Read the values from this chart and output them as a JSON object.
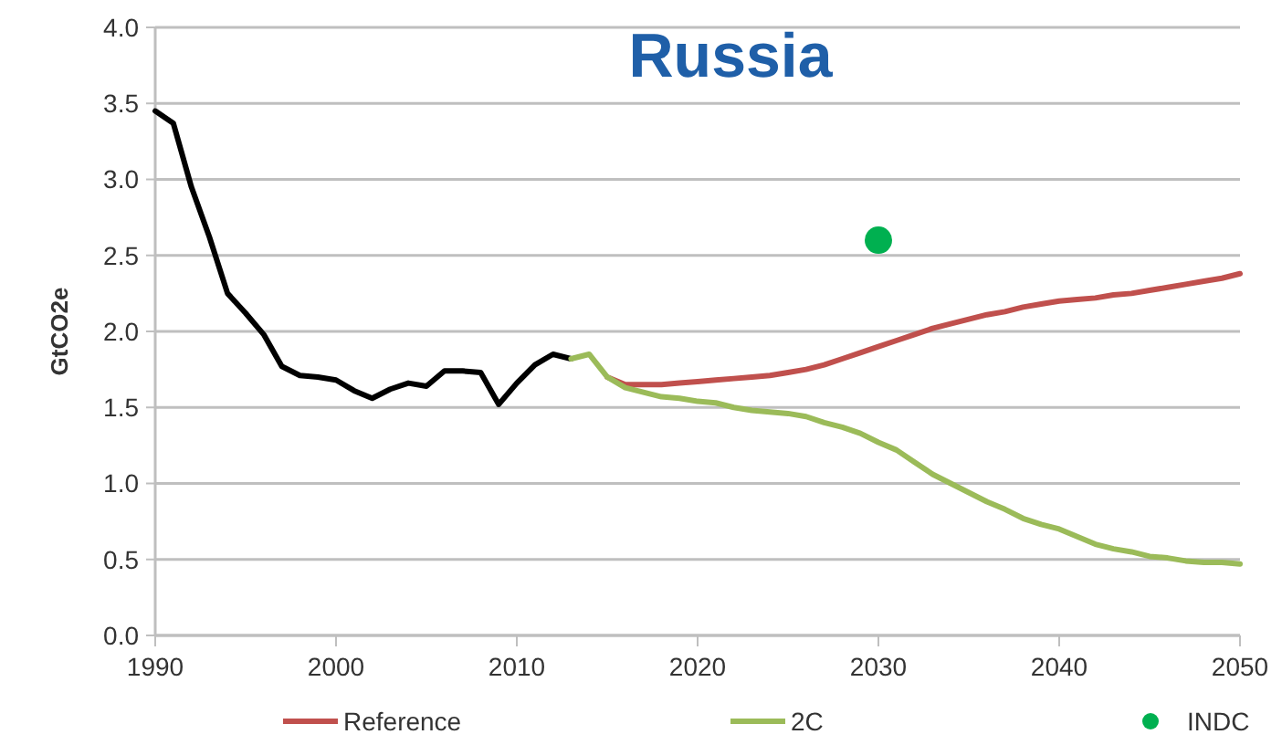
{
  "chart_data": {
    "type": "line",
    "title": "Russia",
    "ylabel": "GtCO2e",
    "xlim": [
      1990,
      2050
    ],
    "xticks": [
      1990,
      2000,
      2010,
      2020,
      2030,
      2040,
      2050
    ],
    "ylim": [
      0,
      4
    ],
    "yticks": [
      {
        "value": 0,
        "label": "0.0"
      },
      {
        "value": 0.5,
        "label": "0.5"
      },
      {
        "value": 1,
        "label": "1.0"
      },
      {
        "value": 1.5,
        "label": "1.5"
      },
      {
        "value": 2,
        "label": "2.0"
      },
      {
        "value": 2.5,
        "label": "2.5"
      },
      {
        "value": 3,
        "label": "3.0"
      },
      {
        "value": 3.5,
        "label": "3.5"
      },
      {
        "value": 4,
        "label": "4.0"
      }
    ],
    "grid": "y",
    "legend": "bottom",
    "marker": "none",
    "line_style": "solid",
    "series": [
      {
        "color": "#000000",
        "x": [
          1990,
          1991,
          1992,
          1993,
          1994,
          1995,
          1996,
          1997,
          1998,
          1999,
          2000,
          2001,
          2002,
          2003,
          2004,
          2005,
          2006,
          2007,
          2008,
          2009,
          2010,
          2011,
          2012,
          2013
        ],
        "values": [
          3.45,
          3.37,
          2.95,
          2.62,
          2.25,
          2.12,
          1.98,
          1.77,
          1.71,
          1.7,
          1.68,
          1.61,
          1.56,
          1.62,
          1.66,
          1.64,
          1.74,
          1.74,
          1.73,
          1.52,
          1.66,
          1.78,
          1.85,
          1.82
        ]
      },
      {
        "name": "Reference",
        "color": "#c0504d",
        "x": [
          2015,
          2016,
          2017,
          2018,
          2019,
          2020,
          2021,
          2022,
          2023,
          2024,
          2025,
          2026,
          2027,
          2028,
          2029,
          2030,
          2031,
          2032,
          2033,
          2034,
          2035,
          2036,
          2037,
          2038,
          2039,
          2040,
          2041,
          2042,
          2043,
          2044,
          2045,
          2046,
          2047,
          2048,
          2049,
          2050
        ],
        "values": [
          1.7,
          1.65,
          1.65,
          1.65,
          1.66,
          1.67,
          1.68,
          1.69,
          1.7,
          1.71,
          1.73,
          1.75,
          1.78,
          1.82,
          1.86,
          1.9,
          1.94,
          1.98,
          2.02,
          2.05,
          2.08,
          2.11,
          2.13,
          2.16,
          2.18,
          2.2,
          2.21,
          2.22,
          2.24,
          2.25,
          2.27,
          2.29,
          2.31,
          2.33,
          2.35,
          2.38
        ]
      },
      {
        "name": "2C",
        "color": "#9bbb59",
        "x": [
          2013,
          2014,
          2015,
          2016,
          2017,
          2018,
          2019,
          2020,
          2021,
          2022,
          2023,
          2024,
          2025,
          2026,
          2027,
          2028,
          2029,
          2030,
          2031,
          2032,
          2033,
          2034,
          2035,
          2036,
          2037,
          2038,
          2039,
          2040,
          2041,
          2042,
          2043,
          2044,
          2045,
          2046,
          2047,
          2048,
          2049,
          2050
        ],
        "values": [
          1.82,
          1.85,
          1.7,
          1.63,
          1.6,
          1.57,
          1.56,
          1.54,
          1.53,
          1.5,
          1.48,
          1.47,
          1.46,
          1.44,
          1.4,
          1.37,
          1.33,
          1.27,
          1.22,
          1.14,
          1.06,
          1.0,
          0.94,
          0.88,
          0.83,
          0.77,
          0.73,
          0.7,
          0.65,
          0.6,
          0.57,
          0.55,
          0.52,
          0.51,
          0.49,
          0.48,
          0.48,
          0.47
        ]
      },
      {
        "name": "INDC",
        "type": "scatter",
        "marker": "circle",
        "color": "#00b050",
        "x": [
          2030
        ],
        "values": [
          2.6
        ]
      }
    ]
  }
}
